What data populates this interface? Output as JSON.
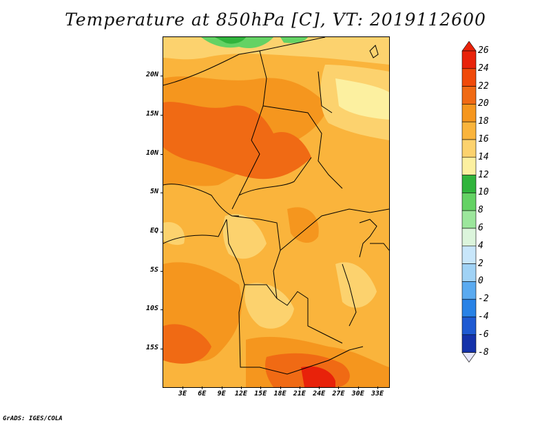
{
  "title": "Temperature at 850hPa [C], VT: 2019112600",
  "credit": "GrADS: IGES/COLA",
  "map": {
    "lat_labels": [
      "20N",
      "15N",
      "10N",
      "5N",
      "EQ",
      "5S",
      "10S",
      "15S"
    ],
    "lon_labels": [
      "3E",
      "6E",
      "9E",
      "12E",
      "15E",
      "18E",
      "21E",
      "24E",
      "27E",
      "30E",
      "33E"
    ]
  },
  "colorbar": {
    "labels": [
      "26",
      "24",
      "22",
      "20",
      "18",
      "16",
      "14",
      "12",
      "10",
      "8",
      "6",
      "4",
      "2",
      "0",
      "-2",
      "-4",
      "-6",
      "-8"
    ],
    "colors": [
      "#e8220a",
      "#f04a0a",
      "#f06a14",
      "#f5961e",
      "#fab43c",
      "#fcd26e",
      "#fcf0a0",
      "#30b43c",
      "#64d264",
      "#9ce69c",
      "#dcf5dc",
      "#c8e6fa",
      "#a0d2f5",
      "#5aaaf0",
      "#2882e6",
      "#1e5ad2",
      "#1432aa",
      "#0a0a78",
      "#e6e6fa"
    ]
  }
}
